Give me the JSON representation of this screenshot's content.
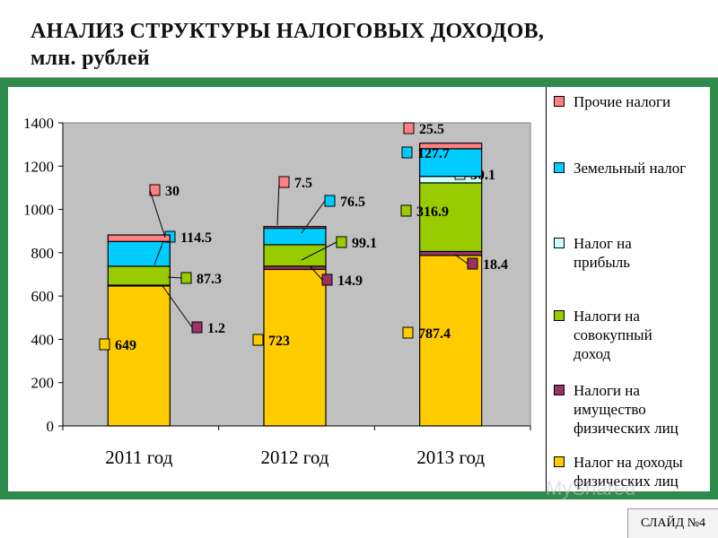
{
  "slide": {
    "title_line1": "АНАЛИЗ СТРУКТУРЫ НАЛОГОВЫХ ДОХОДОВ,",
    "title_line2": "млн. рублей",
    "badge": "СЛАЙД №4",
    "watermark": "MyShared"
  },
  "colors": {
    "frame": "#2e8b4b",
    "plot_bg": "#c0c0c0"
  },
  "chart_data": {
    "type": "bar",
    "stacked": true,
    "categories": [
      "2011 год",
      "2012 год",
      "2013 год"
    ],
    "ylim": [
      0,
      1400
    ],
    "yticks": [
      "0",
      "200",
      "400",
      "600",
      "800",
      "1000",
      "1200",
      "1400"
    ],
    "grid": false,
    "legend_position": "right",
    "series": [
      {
        "name": "Налог на доходы физических лиц",
        "color": "#ffcc00",
        "values": [
          649,
          723,
          787.4
        ],
        "labels": [
          "649",
          "723",
          "787.4"
        ]
      },
      {
        "name": "Налоги на имущество физических лиц",
        "color": "#993366",
        "values": [
          1.2,
          14.9,
          18.4
        ],
        "labels": [
          "1.2",
          "14.9",
          "18.4"
        ]
      },
      {
        "name": "Налоги на совокупный доход",
        "color": "#99cc00",
        "values": [
          87.3,
          99.1,
          316.9
        ],
        "labels": [
          "87.3",
          "99.1",
          "316.9"
        ]
      },
      {
        "name": "Налог на прибыль",
        "color": "#ccffff",
        "values": [
          0,
          0,
          30.1
        ],
        "labels": [
          "",
          "",
          "30.1"
        ]
      },
      {
        "name": "Земельный налог",
        "color": "#00ccff",
        "values": [
          114.5,
          76.5,
          127.7
        ],
        "labels": [
          "114.5",
          "76.5",
          "127.7"
        ]
      },
      {
        "name": "Прочие налоги",
        "color": "#ff8080",
        "values": [
          30,
          7.5,
          25.5
        ],
        "labels": [
          "30",
          "7.5",
          "25.5"
        ]
      }
    ]
  },
  "legend": {
    "items": [
      {
        "lines": [
          "Прочие налоги"
        ],
        "color": "#ff8080"
      },
      {
        "lines": [
          "Земельный налог"
        ],
        "color": "#00ccff"
      },
      {
        "lines": [
          "Налог на",
          "прибыль"
        ],
        "color": "#ccffff"
      },
      {
        "lines": [
          "Налоги на",
          "совокупный",
          "доход"
        ],
        "color": "#99cc00"
      },
      {
        "lines": [
          "Налоги на",
          "имущество",
          "физических лиц"
        ],
        "color": "#993366"
      },
      {
        "lines": [
          "Налог на доходы",
          "физических лиц"
        ],
        "color": "#ffcc00"
      }
    ]
  }
}
